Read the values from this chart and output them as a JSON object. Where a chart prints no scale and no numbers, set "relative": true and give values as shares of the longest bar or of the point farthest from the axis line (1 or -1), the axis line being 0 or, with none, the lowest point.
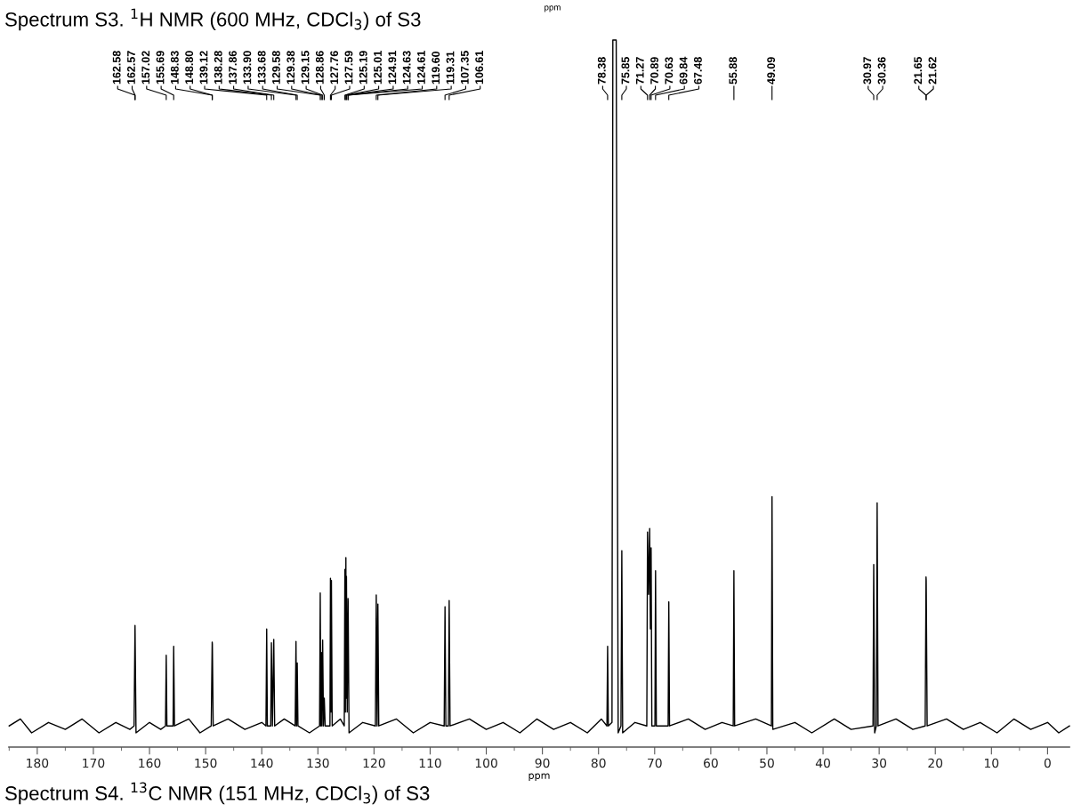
{
  "chart_data": {
    "type": "line",
    "relative": true,
    "title": "Spectrum S4. $^{13}$C NMR (151 MHz, CDCl$_{3}$) of S3",
    "xlabel": "ppm",
    "xlim": [
      185.05,
      -3.9
    ],
    "xticks": [
      180,
      170,
      160,
      150,
      140,
      130,
      120,
      110,
      100,
      90,
      80,
      70,
      60,
      50,
      40,
      30,
      20,
      10,
      0
    ],
    "grid": false,
    "marker": "none",
    "line_style": "solid",
    "annotations": [
      "Spectrum S3. $^{1}$H NMR (600 MHz, CDCl$_{3}$) of S3",
      "ppm",
      {
        "text": "162.58",
        "x": 162.58
      },
      {
        "text": "162.57",
        "x": 162.57
      },
      {
        "text": "157.02",
        "x": 157.02
      },
      {
        "text": "155.69",
        "x": 155.69
      },
      {
        "text": "148.83",
        "x": 148.83
      },
      {
        "text": "148.80",
        "x": 148.8
      },
      {
        "text": "139.12",
        "x": 139.12
      },
      {
        "text": "138.28",
        "x": 138.28
      },
      {
        "text": "137.86",
        "x": 137.86
      },
      {
        "text": "133.90",
        "x": 133.9
      },
      {
        "text": "133.68",
        "x": 133.68
      },
      {
        "text": "129.58",
        "x": 129.58
      },
      {
        "text": "129.38",
        "x": 129.38
      },
      {
        "text": "129.15",
        "x": 129.15
      },
      {
        "text": "128.86",
        "x": 128.86
      },
      {
        "text": "127.76",
        "x": 127.76
      },
      {
        "text": "127.59",
        "x": 127.59
      },
      {
        "text": "125.19",
        "x": 125.19
      },
      {
        "text": "125.01",
        "x": 125.01
      },
      {
        "text": "124.91",
        "x": 124.91
      },
      {
        "text": "124.63",
        "x": 124.63
      },
      {
        "text": "124.61",
        "x": 124.61
      },
      {
        "text": "119.60",
        "x": 119.6
      },
      {
        "text": "119.31",
        "x": 119.31
      },
      {
        "text": "107.35",
        "x": 107.35
      },
      {
        "text": "106.61",
        "x": 106.61
      },
      {
        "text": "78.38",
        "x": 78.38
      },
      {
        "text": "75.85",
        "x": 75.85
      },
      {
        "text": "71.27",
        "x": 71.27
      },
      {
        "text": "70.89",
        "x": 70.89
      },
      {
        "text": "70.63",
        "x": 70.63
      },
      {
        "text": "69.84",
        "x": 69.84
      },
      {
        "text": "67.48",
        "x": 67.48
      },
      {
        "text": "55.88",
        "x": 55.88
      },
      {
        "text": "49.09",
        "x": 49.09
      },
      {
        "text": "30.97",
        "x": 30.97
      },
      {
        "text": "30.36",
        "x": 30.36
      },
      {
        "text": "21.65",
        "x": 21.65
      },
      {
        "text": "21.62",
        "x": 21.62
      }
    ],
    "series": [
      {
        "color": "#000000",
        "x": [
          185,
          183,
          181,
          178,
          175,
          172,
          169,
          166,
          163.5,
          162.75,
          162.58,
          162.57,
          162.4,
          160,
          158,
          157.15,
          157.02,
          156.9,
          155.8,
          155.69,
          155.55,
          153,
          151,
          149,
          148.83,
          148.8,
          148.65,
          146,
          143,
          140,
          139.25,
          139.12,
          139.0,
          138.4,
          138.28,
          138.1,
          137.86,
          137.7,
          136,
          134.05,
          133.9,
          133.8,
          133.68,
          133.55,
          131.5,
          129.7,
          129.58,
          129.48,
          129.38,
          129.27,
          129.15,
          129.0,
          128.86,
          128.7,
          127.85,
          127.76,
          127.68,
          127.59,
          127.45,
          126,
          125.3,
          125.19,
          125.1,
          125.01,
          124.96,
          124.91,
          124.77,
          124.63,
          124.61,
          124.45,
          122,
          119.75,
          119.6,
          119.45,
          119.31,
          119.15,
          116,
          113,
          110,
          107.5,
          107.35,
          107.2,
          106.75,
          106.61,
          106.45,
          103,
          100,
          97,
          94,
          91,
          88,
          85,
          82,
          79.5,
          78.5,
          78.38,
          78.25,
          77.6,
          77.45,
          76.85,
          76.5,
          76.0,
          75.85,
          75.7,
          73.5,
          71.4,
          71.27,
          71.08,
          70.89,
          70.76,
          70.63,
          70.5,
          69.95,
          69.84,
          69.7,
          67.6,
          67.48,
          67.35,
          64,
          61,
          58,
          56,
          55.88,
          55.75,
          52,
          49.2,
          49.09,
          48.95,
          45,
          42,
          38,
          35,
          31.1,
          30.97,
          30.8,
          30.5,
          30.36,
          30.2,
          27,
          24,
          21.8,
          21.65,
          21.62,
          21.45,
          18,
          15,
          12,
          9,
          6,
          3,
          0,
          -2,
          -3.9
        ],
        "values": [
          0.01,
          0.02,
          0.0,
          0.015,
          0.005,
          0.02,
          0.0,
          0.015,
          0.005,
          0.01,
          0.155,
          0.15,
          0.0,
          0.015,
          0.005,
          0.01,
          0.112,
          0.01,
          0.01,
          0.125,
          0.01,
          0.02,
          0.0,
          0.01,
          0.131,
          0.128,
          0.01,
          0.02,
          0.005,
          0.015,
          0.01,
          0.15,
          0.01,
          0.01,
          0.13,
          0.01,
          0.135,
          0.01,
          0.02,
          0.01,
          0.132,
          0.01,
          0.101,
          0.01,
          0.0,
          0.01,
          0.202,
          0.01,
          0.116,
          0.01,
          0.134,
          0.01,
          0.05,
          0.01,
          0.01,
          0.223,
          0.03,
          0.22,
          0.01,
          0.02,
          0.01,
          0.236,
          0.03,
          0.253,
          0.05,
          0.226,
          0.03,
          0.194,
          0.19,
          0.0,
          0.015,
          0.01,
          0.199,
          0.01,
          0.186,
          0.01,
          0.02,
          0.0,
          0.015,
          0.01,
          0.182,
          0.01,
          0.01,
          0.191,
          0.01,
          0.02,
          0.005,
          0.015,
          0.0,
          0.02,
          0.005,
          0.015,
          0.0,
          0.02,
          0.01,
          0.125,
          0.01,
          0.015,
          1,
          1,
          0.0,
          0.01,
          0.263,
          0.0,
          0.015,
          0.01,
          0.29,
          0.2,
          0.295,
          0.15,
          0.267,
          0.01,
          0.01,
          0.234,
          0.01,
          0.01,
          0.189,
          0.01,
          0.02,
          0.005,
          0.015,
          0.01,
          0.234,
          0.01,
          0.02,
          0.01,
          0.341,
          0.005,
          0.015,
          0.0,
          0.02,
          0.005,
          0.01,
          0.243,
          0.0,
          0.01,
          0.332,
          0.01,
          0.02,
          0.005,
          0.01,
          0.225,
          0.22,
          0.01,
          0.02,
          0.005,
          0.015,
          0.0,
          0.02,
          0.005,
          0.015,
          0.0,
          0.01
        ]
      }
    ]
  }
}
